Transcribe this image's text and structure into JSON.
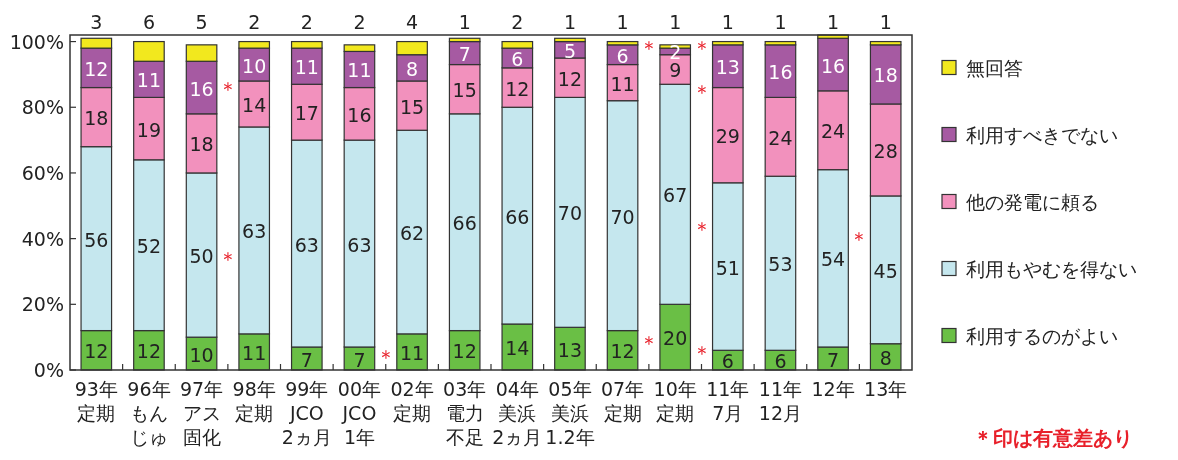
{
  "chart_data": {
    "type": "bar",
    "stacked": true,
    "data_labels": true,
    "legend": "right",
    "grid": false,
    "categories": [
      "93年定期",
      "96年もんじゅ",
      "97年アス固化",
      "98年定期",
      "99年JCO2ヵ月",
      "00年JCO1年",
      "02年定期",
      "03年電力不足",
      "04年美浜2ヵ月",
      "05年美浜1.2年",
      "07年定期",
      "10年定期",
      "11年7月",
      "11年12月",
      "12年",
      "13年"
    ],
    "series": [
      {
        "name": "利用するのがよい",
        "color": "#6abf45",
        "values": [
          12,
          12,
          10,
          11,
          7,
          7,
          11,
          12,
          14,
          13,
          12,
          20,
          6,
          6,
          7,
          8
        ]
      },
      {
        "name": "利用もやむを得ない",
        "color": "#c5e7ee",
        "values": [
          56,
          52,
          50,
          63,
          63,
          63,
          62,
          66,
          66,
          70,
          70,
          67,
          51,
          53,
          54,
          45
        ]
      },
      {
        "name": "他の発電に頼る",
        "color": "#f291bd",
        "values": [
          18,
          19,
          18,
          14,
          17,
          16,
          15,
          15,
          12,
          12,
          11,
          9,
          29,
          24,
          24,
          28
        ]
      },
      {
        "name": "利用すべきでない",
        "color": "#a65aa2",
        "values": [
          12,
          11,
          16,
          10,
          11,
          11,
          8,
          7,
          6,
          5,
          6,
          2,
          13,
          16,
          16,
          18
        ]
      },
      {
        "name": "無回答",
        "color": "#f2e81e",
        "values": [
          3,
          6,
          5,
          2,
          2,
          2,
          4,
          1,
          2,
          1,
          1,
          1,
          1,
          1,
          1,
          1
        ]
      }
    ],
    "ylim": [
      0,
      102
    ],
    "yticks": [
      {
        "value": 0,
        "label": "0%"
      },
      {
        "value": 20,
        "label": "20%"
      },
      {
        "value": 40,
        "label": "40%"
      },
      {
        "value": 60,
        "label": "60%"
      },
      {
        "value": 80,
        "label": "80%"
      },
      {
        "value": 100,
        "label": "100%"
      }
    ],
    "annotations": [
      "＊",
      "＊",
      "＊",
      "＊",
      "＊",
      "＊",
      "＊",
      "＊",
      "＊",
      "＊",
      "＊印は有意差あり"
    ]
  }
}
